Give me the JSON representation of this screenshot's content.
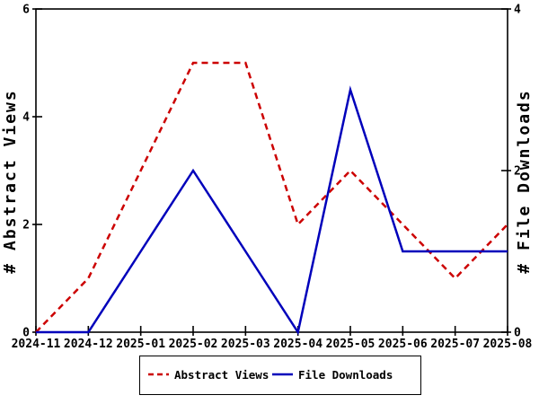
{
  "figure": {
    "background": "#ffffff",
    "frame_color": "#000000"
  },
  "chart_data": {
    "type": "line",
    "title": "",
    "x_categories": [
      "2024-11",
      "2024-12",
      "2025-01",
      "2025-02",
      "2025-03",
      "2025-04",
      "2025-05",
      "2025-06",
      "2025-07",
      "2025-08"
    ],
    "series": [
      {
        "name": "Abstract Views",
        "axis": "left",
        "style": "dashed",
        "color": "#cc0000",
        "values": [
          0,
          1,
          3,
          5,
          5,
          2,
          3,
          2,
          1,
          2
        ]
      },
      {
        "name": "File Downloads",
        "axis": "right",
        "style": "solid",
        "color": "#0000bb",
        "values": [
          0,
          0,
          1,
          2,
          1,
          0,
          3,
          1,
          1,
          1
        ]
      }
    ],
    "left_axis": {
      "label": "# Abstract Views",
      "range": [
        0,
        6
      ],
      "ticks": [
        0,
        2,
        4,
        6
      ]
    },
    "right_axis": {
      "label": "# File Downloads",
      "range": [
        0,
        4
      ],
      "ticks": [
        0,
        2,
        4
      ]
    },
    "grid": false,
    "legend": {
      "position": "bottom-center",
      "entries": [
        "Abstract Views",
        "File Downloads"
      ]
    }
  }
}
